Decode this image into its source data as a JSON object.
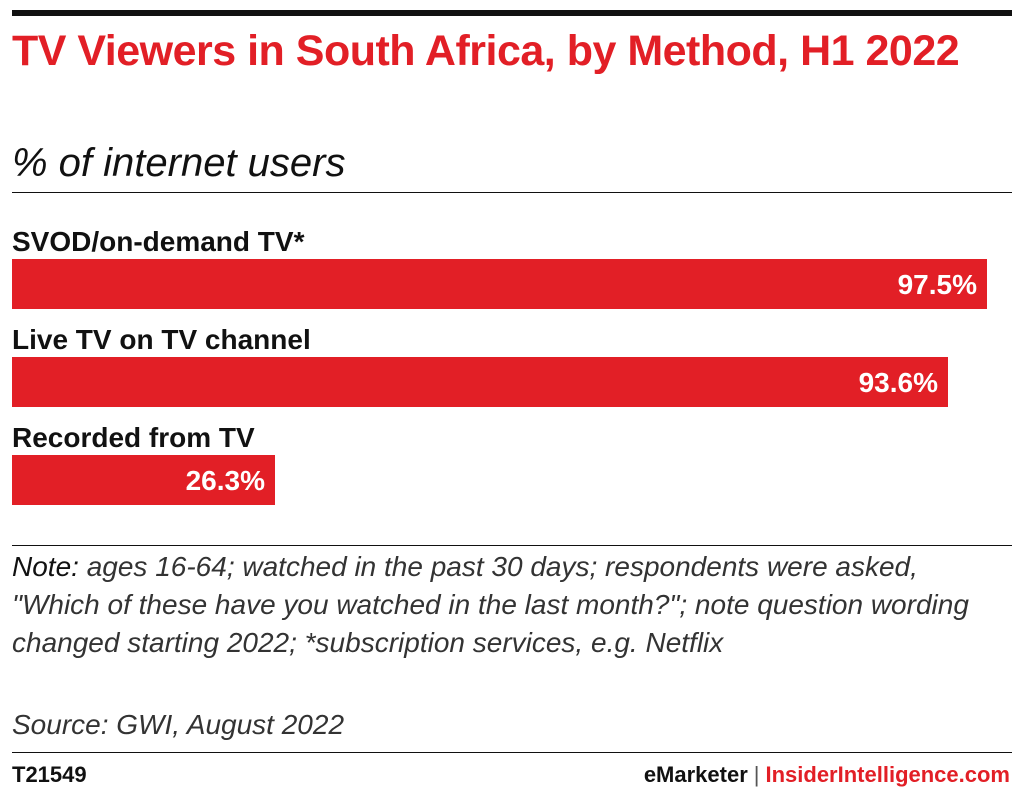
{
  "colors": {
    "accent": "#e21f26",
    "text": "#111111",
    "bar_label_inside": "#ffffff"
  },
  "header": {
    "title": "TV Viewers in South Africa, by Method, H1 2022",
    "subtitle": "% of internet users"
  },
  "chart_data": {
    "type": "bar",
    "orientation": "horizontal",
    "title": "TV Viewers in South Africa, by Method, H1 2022",
    "subtitle": "% of internet users",
    "categories": [
      "SVOD/on-demand TV*",
      "Live TV on TV channel",
      "Recorded from TV"
    ],
    "values": [
      97.5,
      93.6,
      26.3
    ],
    "value_labels": [
      "97.5%",
      "93.6%",
      "26.3%"
    ],
    "unit": "%",
    "xlim": [
      0,
      100
    ],
    "grid": false,
    "legend": "none"
  },
  "footer": {
    "note_lead": "Note:",
    "note_text": " ages 16-64; watched in the past 30 days; respondents were asked, \"Which of these have you watched in the last month?\"; note question wording changed starting 2022; *subscription services, e.g. Netflix",
    "source": "Source: GWI, August 2022",
    "chart_id": "T21549",
    "brand_emarketer": "eMarketer",
    "brand_separator": "|",
    "brand_insider": "InsiderIntelligence.com"
  }
}
